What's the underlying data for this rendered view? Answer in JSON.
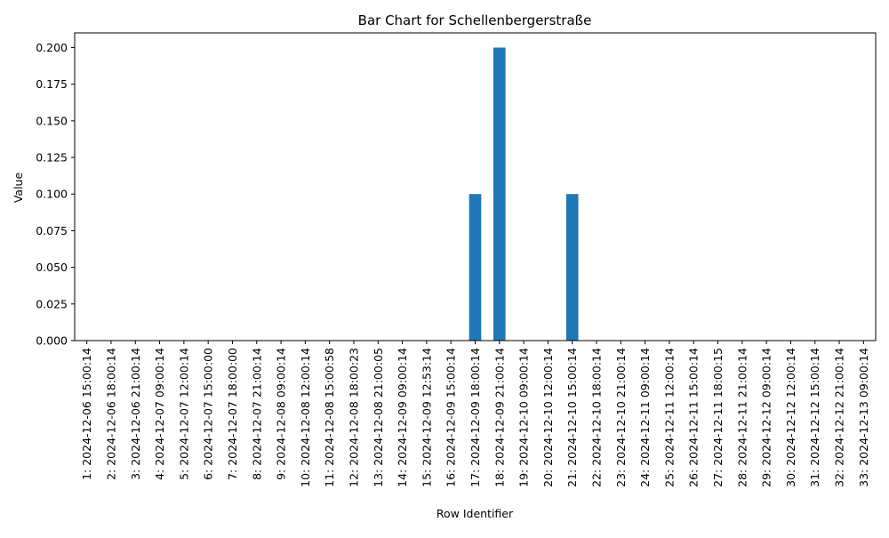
{
  "chart_data": {
    "type": "bar",
    "title": "Bar Chart for Schellenbergerstraße",
    "xlabel": "Row Identifier",
    "ylabel": "Value",
    "ylim": [
      0,
      0.21
    ],
    "yticks": [
      "0.000",
      "0.025",
      "0.050",
      "0.075",
      "0.100",
      "0.125",
      "0.150",
      "0.175",
      "0.200"
    ],
    "grid": false,
    "bar_color": "#1f77b4",
    "categories": [
      "1: 2024-12-06 15:00:14",
      "2: 2024-12-06 18:00:14",
      "3: 2024-12-06 21:00:14",
      "4: 2024-12-07 09:00:14",
      "5: 2024-12-07 12:00:14",
      "6: 2024-12-07 15:00:00",
      "7: 2024-12-07 18:00:00",
      "8: 2024-12-07 21:00:14",
      "9: 2024-12-08 09:00:14",
      "10: 2024-12-08 12:00:14",
      "11: 2024-12-08 15:00:58",
      "12: 2024-12-08 18:00:23",
      "13: 2024-12-08 21:00:05",
      "14: 2024-12-09 09:00:14",
      "15: 2024-12-09 12:53:14",
      "16: 2024-12-09 15:00:14",
      "17: 2024-12-09 18:00:14",
      "18: 2024-12-09 21:00:14",
      "19: 2024-12-10 09:00:14",
      "20: 2024-12-10 12:00:14",
      "21: 2024-12-10 15:00:14",
      "22: 2024-12-10 18:00:14",
      "23: 2024-12-10 21:00:14",
      "24: 2024-12-11 09:00:14",
      "25: 2024-12-11 12:00:14",
      "26: 2024-12-11 15:00:14",
      "27: 2024-12-11 18:00:15",
      "28: 2024-12-11 21:00:14",
      "29: 2024-12-12 09:00:14",
      "30: 2024-12-12 12:00:14",
      "31: 2024-12-12 15:00:14",
      "32: 2024-12-12 21:00:14",
      "33: 2024-12-13 09:00:14"
    ],
    "values": [
      0,
      0,
      0,
      0,
      0,
      0,
      0,
      0,
      0,
      0,
      0,
      0,
      0,
      0,
      0,
      0,
      0.1,
      0.2,
      0,
      0,
      0.1,
      0,
      0,
      0,
      0,
      0,
      0,
      0,
      0,
      0,
      0,
      0,
      0
    ]
  }
}
